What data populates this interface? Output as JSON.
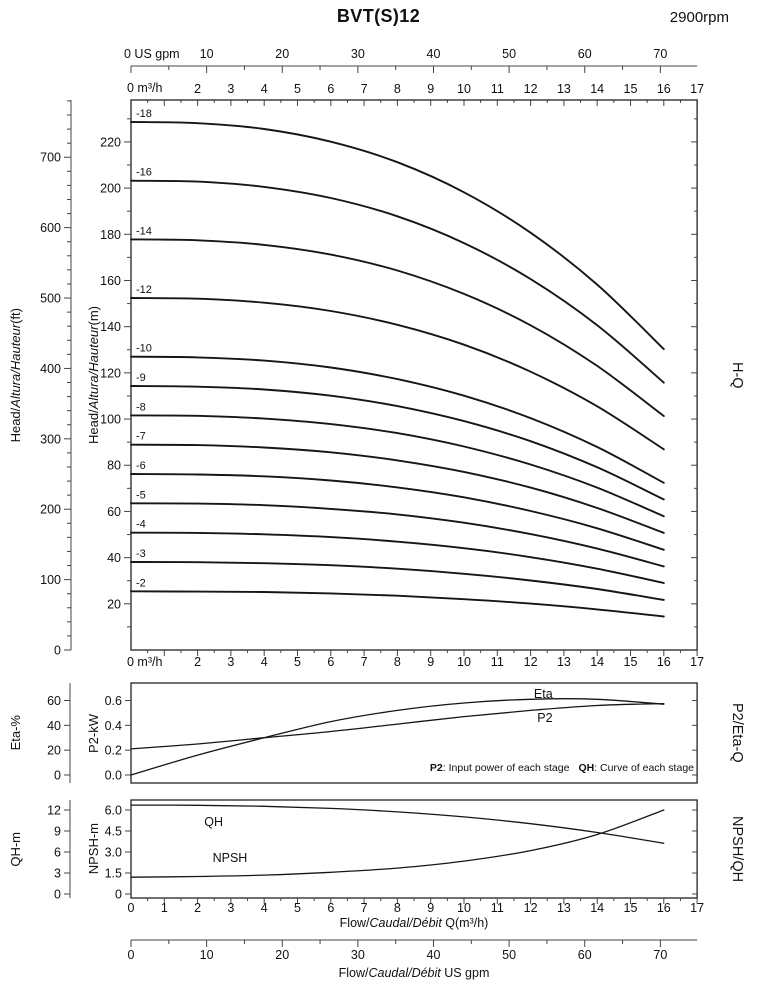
{
  "header": {
    "title": "BVT(S)12",
    "rpm": "2900rpm"
  },
  "axis_titles": {
    "head_ft_pre": "Head/",
    "head_ft_it": "Altura/Hauteur",
    "head_ft_post": "(ft)",
    "head_m_pre": "Head/",
    "head_m_it": "Altura/Hauteur",
    "head_m_post": "(m)",
    "eta_pct": "Eta-%",
    "p2_kw": "P2-kW",
    "qh_m": "QH-m",
    "npsh_m": "NPSH-m",
    "right_hq": "H-Q",
    "right_p2eta": "P2/Eta-Q",
    "right_npshqh": "NPSH/QH",
    "flow_m3h_pre": "Flow/",
    "flow_m3h_it": "Caudal/Débit",
    "flow_m3h_post": " Q(m³/h)",
    "flow_gpm_pre": "Flow/",
    "flow_gpm_it": "Caudal/Débit",
    "flow_gpm_post": "  US gpm",
    "gpm_zero": "0 US gpm",
    "m3h_zero_top": "0 m³/h",
    "m3h_zero_bottom": "0 m³/h"
  },
  "note": {
    "p2_term": "P2",
    "p2_desc": ": Input power of each stage",
    "qh_term": "QH",
    "qh_desc": ": Curve of each stage"
  },
  "chart_data": [
    {
      "id": "H-Q",
      "type": "line",
      "title": "Head vs Flow, stages -2 to -18",
      "xlabel": "Flow Q (m³/h)",
      "ylabel": "Head (m)",
      "xlim": [
        0,
        17
      ],
      "ylim": [
        0,
        238
      ],
      "x": [
        0,
        2,
        4,
        6,
        8,
        10,
        12,
        14,
        16
      ],
      "m_ticks": [
        20,
        40,
        60,
        80,
        100,
        120,
        140,
        160,
        180,
        200,
        220
      ],
      "ft_ticks": [
        0,
        100,
        200,
        300,
        400,
        500,
        600,
        700
      ],
      "q_tick_labels": [
        2,
        3,
        4,
        5,
        6,
        7,
        8,
        9,
        10,
        11,
        12,
        13,
        14,
        15,
        16,
        17
      ],
      "gpm_ticks": [
        10,
        20,
        30,
        40,
        50,
        60,
        70
      ],
      "series": [
        {
          "name": "-18",
          "values": [
            228.6,
            228.1,
            225.6,
            220.1,
            211.2,
            198.2,
            180.7,
            158.2,
            130.3
          ]
        },
        {
          "name": "-16",
          "values": [
            203.2,
            202.8,
            200.5,
            195.7,
            187.8,
            176.2,
            160.6,
            140.6,
            115.8
          ]
        },
        {
          "name": "-14",
          "values": [
            177.8,
            177.4,
            175.4,
            171.2,
            164.3,
            154.2,
            140.6,
            123.0,
            101.3
          ]
        },
        {
          "name": "-12",
          "values": [
            152.4,
            152.1,
            150.4,
            146.8,
            140.8,
            132.2,
            120.5,
            105.5,
            86.9
          ]
        },
        {
          "name": "-10",
          "values": [
            127.0,
            126.7,
            125.3,
            122.3,
            117.3,
            110.1,
            100.4,
            87.9,
            72.4
          ]
        },
        {
          "name": "-9",
          "values": [
            114.3,
            114.0,
            112.8,
            110.1,
            105.6,
            99.1,
            90.4,
            79.1,
            65.2
          ]
        },
        {
          "name": "-8",
          "values": [
            101.6,
            101.4,
            100.2,
            97.8,
            93.9,
            88.1,
            80.3,
            70.3,
            57.9
          ]
        },
        {
          "name": "-7",
          "values": [
            88.9,
            88.7,
            87.7,
            85.6,
            82.1,
            77.1,
            70.3,
            61.5,
            50.7
          ]
        },
        {
          "name": "-6",
          "values": [
            76.2,
            76.0,
            75.2,
            73.4,
            70.4,
            66.1,
            60.2,
            52.7,
            43.4
          ]
        },
        {
          "name": "-5",
          "values": [
            63.5,
            63.4,
            62.7,
            61.1,
            58.7,
            55.1,
            50.2,
            43.9,
            36.2
          ]
        },
        {
          "name": "-4",
          "values": [
            50.8,
            50.7,
            50.1,
            48.9,
            46.9,
            44.1,
            40.2,
            35.2,
            29.0
          ]
        },
        {
          "name": "-3",
          "values": [
            38.1,
            38.0,
            37.6,
            36.7,
            35.2,
            33.0,
            30.1,
            26.4,
            21.7
          ]
        },
        {
          "name": "-2",
          "values": [
            25.4,
            25.3,
            25.1,
            24.5,
            23.5,
            22.0,
            20.1,
            17.6,
            14.5
          ]
        }
      ]
    },
    {
      "id": "P2/Eta-Q",
      "type": "line",
      "title": "Efficiency and input power per stage vs Flow",
      "x": [
        0,
        2,
        4,
        6,
        8,
        10,
        12,
        14,
        16
      ],
      "eta_ticks": [
        0,
        20,
        40,
        60
      ],
      "p2_ticks": [
        "0.0",
        "0.2",
        "0.4",
        "0.6"
      ],
      "series": [
        {
          "name": "Eta",
          "axis": "eta_percent",
          "values": [
            0,
            16,
            30,
            43,
            52,
            58,
            61,
            61,
            57
          ]
        },
        {
          "name": "P2",
          "axis": "p2_kw",
          "values": [
            0.21,
            0.25,
            0.3,
            0.35,
            0.41,
            0.47,
            0.52,
            0.56,
            0.575
          ]
        }
      ]
    },
    {
      "id": "NPSH/QH",
      "type": "line",
      "title": "NPSH and single-stage head vs Flow",
      "x": [
        0,
        2,
        4,
        6,
        8,
        10,
        12,
        14,
        16
      ],
      "qh_ticks": [
        0,
        3,
        6,
        9,
        12
      ],
      "npsh_ticks": [
        "0",
        "1.5",
        "3.0",
        "4.5",
        "6.0"
      ],
      "x_tick_labels": [
        0,
        1,
        2,
        3,
        4,
        5,
        6,
        7,
        8,
        9,
        10,
        11,
        12,
        13,
        14,
        15,
        16,
        17
      ],
      "gpm_axis_ticks": [
        0,
        10,
        20,
        30,
        40,
        50,
        60,
        70
      ],
      "series": [
        {
          "name": "QH",
          "axis": "qh_m",
          "values": [
            12.7,
            12.67,
            12.53,
            12.23,
            11.73,
            11.01,
            10.04,
            8.79,
            7.24
          ]
        },
        {
          "name": "NPSH",
          "axis": "npsh_m",
          "values": [
            1.2,
            1.25,
            1.35,
            1.55,
            1.85,
            2.35,
            3.1,
            4.25,
            6.0
          ]
        }
      ]
    }
  ]
}
